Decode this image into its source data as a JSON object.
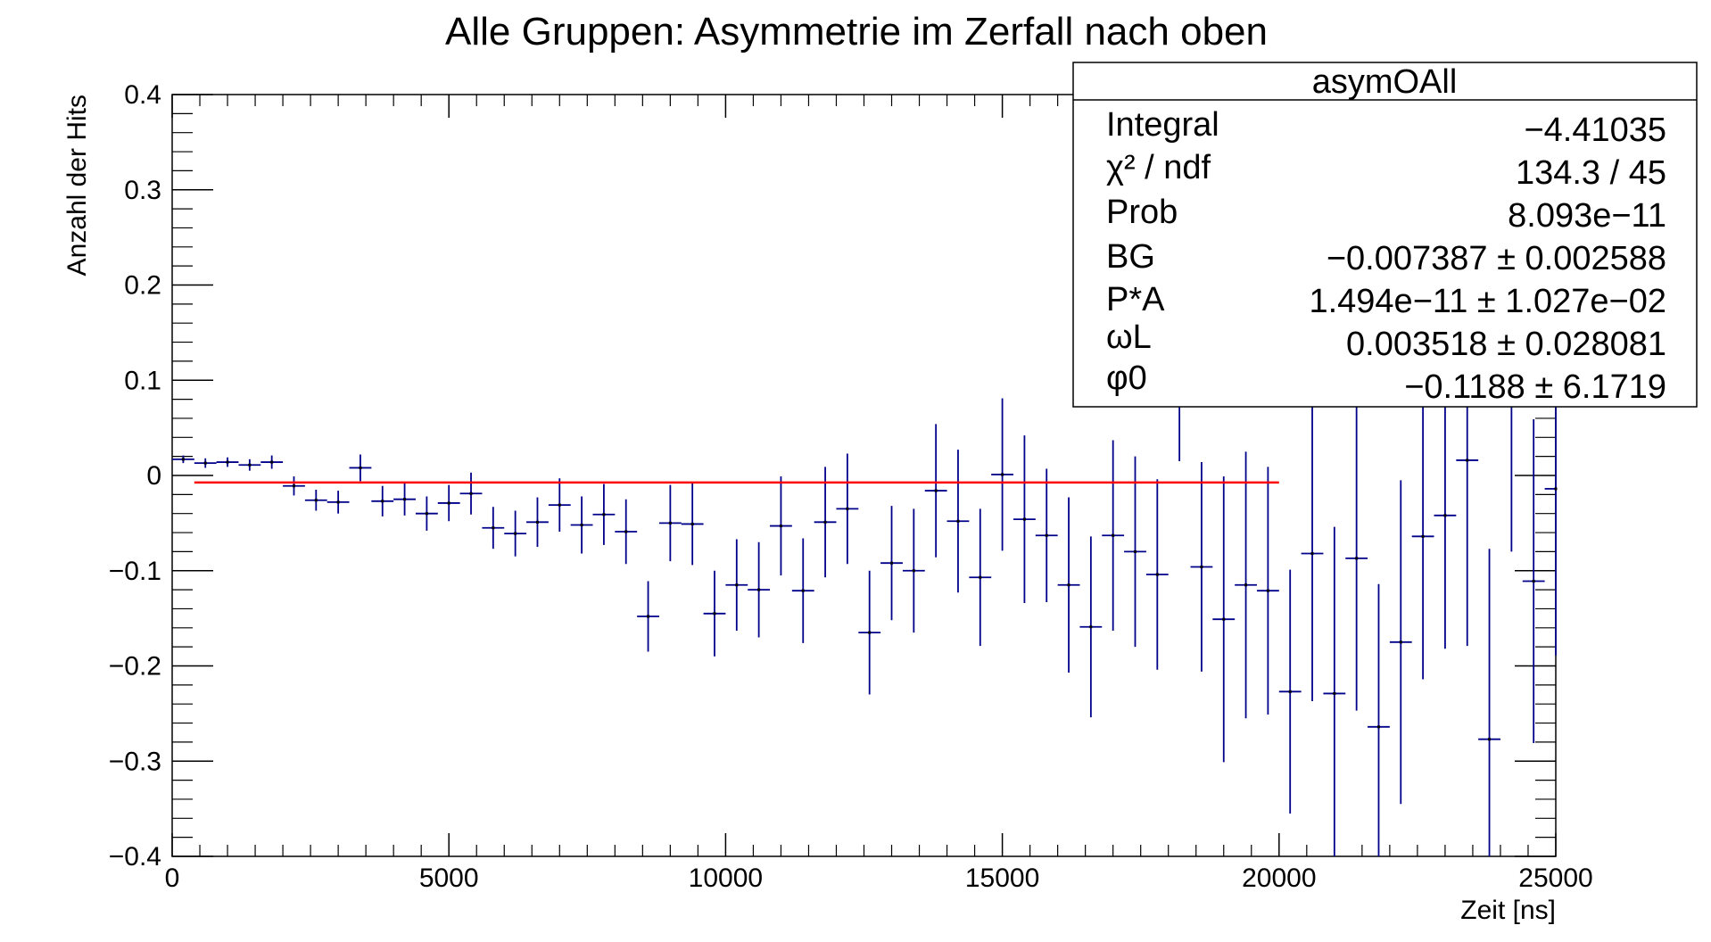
{
  "chart_data": {
    "type": "scatter",
    "title": "Alle Gruppen: Asymmetrie im Zerfall nach oben",
    "xlabel": "Zeit [ns]",
    "ylabel": "Anzahl der Hits",
    "xlim": [
      0,
      25000
    ],
    "ylim": [
      -0.4,
      0.4
    ],
    "xticks": [
      0,
      5000,
      10000,
      15000,
      20000,
      25000
    ],
    "xtick_labels": [
      "0",
      "5000",
      "10000",
      "15000",
      "20000",
      "25000"
    ],
    "yticks": [
      -0.4,
      -0.3,
      -0.2,
      -0.1,
      0,
      0.1,
      0.2,
      0.3,
      0.4
    ],
    "ytick_labels": [
      "−0.4",
      "−0.3",
      "−0.2",
      "−0.1",
      "0",
      "0.1",
      "0.2",
      "0.3",
      "0.4"
    ],
    "grid": false,
    "bin_width": 400,
    "series": [
      {
        "color": "#00008b",
        "points": [
          {
            "x": 200,
            "y": 0.017,
            "err": 0.004
          },
          {
            "x": 600,
            "y": 0.013,
            "err": 0.005
          },
          {
            "x": 1000,
            "y": 0.014,
            "err": 0.005
          },
          {
            "x": 1400,
            "y": 0.011,
            "err": 0.006
          },
          {
            "x": 1800,
            "y": 0.014,
            "err": 0.007
          },
          {
            "x": 2200,
            "y": -0.011,
            "err": 0.01
          },
          {
            "x": 2600,
            "y": -0.026,
            "err": 0.011
          },
          {
            "x": 3000,
            "y": -0.028,
            "err": 0.012
          },
          {
            "x": 3400,
            "y": 0.008,
            "err": 0.014
          },
          {
            "x": 3800,
            "y": -0.027,
            "err": 0.016
          },
          {
            "x": 4200,
            "y": -0.025,
            "err": 0.017
          },
          {
            "x": 4600,
            "y": -0.04,
            "err": 0.018
          },
          {
            "x": 5000,
            "y": -0.029,
            "err": 0.019
          },
          {
            "x": 5400,
            "y": -0.019,
            "err": 0.022
          },
          {
            "x": 5800,
            "y": -0.055,
            "err": 0.022
          },
          {
            "x": 6200,
            "y": -0.061,
            "err": 0.024
          },
          {
            "x": 6600,
            "y": -0.049,
            "err": 0.026
          },
          {
            "x": 7000,
            "y": -0.031,
            "err": 0.028
          },
          {
            "x": 7400,
            "y": -0.052,
            "err": 0.03
          },
          {
            "x": 7800,
            "y": -0.041,
            "err": 0.032
          },
          {
            "x": 8200,
            "y": -0.059,
            "err": 0.034
          },
          {
            "x": 8600,
            "y": -0.148,
            "err": 0.037
          },
          {
            "x": 9000,
            "y": -0.05,
            "err": 0.04
          },
          {
            "x": 9400,
            "y": -0.051,
            "err": 0.043
          },
          {
            "x": 9800,
            "y": -0.145,
            "err": 0.045
          },
          {
            "x": 10200,
            "y": -0.115,
            "err": 0.048
          },
          {
            "x": 10600,
            "y": -0.12,
            "err": 0.05
          },
          {
            "x": 11000,
            "y": -0.053,
            "err": 0.052
          },
          {
            "x": 11400,
            "y": -0.121,
            "err": 0.055
          },
          {
            "x": 11800,
            "y": -0.049,
            "err": 0.058
          },
          {
            "x": 12200,
            "y": -0.035,
            "err": 0.058
          },
          {
            "x": 12600,
            "y": -0.165,
            "err": 0.065
          },
          {
            "x": 13000,
            "y": -0.092,
            "err": 0.06
          },
          {
            "x": 13400,
            "y": -0.1,
            "err": 0.065
          },
          {
            "x": 13800,
            "y": -0.016,
            "err": 0.07
          },
          {
            "x": 14200,
            "y": -0.048,
            "err": 0.075
          },
          {
            "x": 14600,
            "y": -0.107,
            "err": 0.072
          },
          {
            "x": 15000,
            "y": 0.001,
            "err": 0.08
          },
          {
            "x": 15400,
            "y": -0.046,
            "err": 0.088
          },
          {
            "x": 15800,
            "y": -0.063,
            "err": 0.07
          },
          {
            "x": 16200,
            "y": -0.115,
            "err": 0.092
          },
          {
            "x": 16600,
            "y": -0.159,
            "err": 0.095
          },
          {
            "x": 17000,
            "y": -0.063,
            "err": 0.1
          },
          {
            "x": 17400,
            "y": -0.08,
            "err": 0.1
          },
          {
            "x": 17800,
            "y": -0.104,
            "err": 0.1
          },
          {
            "x": 18200,
            "y": 0.09,
            "err": 0.075
          },
          {
            "x": 18600,
            "y": -0.096,
            "err": 0.11
          },
          {
            "x": 19000,
            "y": -0.151,
            "err": 0.15
          },
          {
            "x": 19400,
            "y": -0.115,
            "err": 0.14
          },
          {
            "x": 19800,
            "y": -0.121,
            "err": 0.13
          },
          {
            "x": 20200,
            "y": -0.227,
            "err": 0.128
          },
          {
            "x": 20600,
            "y": -0.082,
            "err": 0.155
          },
          {
            "x": 21000,
            "y": -0.229,
            "err": 0.175
          },
          {
            "x": 21400,
            "y": -0.087,
            "err": 0.16
          },
          {
            "x": 21800,
            "y": -0.264,
            "err": 0.15
          },
          {
            "x": 22200,
            "y": -0.175,
            "err": 0.17
          },
          {
            "x": 22600,
            "y": -0.064,
            "err": 0.15
          },
          {
            "x": 23000,
            "y": -0.042,
            "err": 0.14
          },
          {
            "x": 23400,
            "y": 0.016,
            "err": 0.195
          },
          {
            "x": 23800,
            "y": -0.277,
            "err": 0.2
          },
          {
            "x": 24200,
            "y": 0.13,
            "err": 0.21
          },
          {
            "x": 24600,
            "y": -0.111,
            "err": 0.17
          },
          {
            "x": 25000,
            "y": -0.014,
            "err": 0.175
          }
        ]
      }
    ],
    "fit": {
      "color": "#ff0000",
      "x": [
        400,
        20000
      ],
      "y": -0.007387
    }
  },
  "stats_box": {
    "name": "asymOAll",
    "rows": [
      {
        "label": "Integral",
        "value": "−4.41035"
      },
      {
        "label": "χ² / ndf",
        "value": "134.3 / 45"
      },
      {
        "label": "Prob",
        "value": "8.093e−11"
      },
      {
        "label": "BG",
        "value": "−0.007387 ± 0.002588"
      },
      {
        "label": "P*A",
        "value": "1.494e−11 ± 1.027e−02"
      },
      {
        "label": "ωL",
        "value": "0.003518 ± 0.028081"
      },
      {
        "label": "φ0",
        "value": "−0.1188 ± 6.1719"
      }
    ]
  }
}
